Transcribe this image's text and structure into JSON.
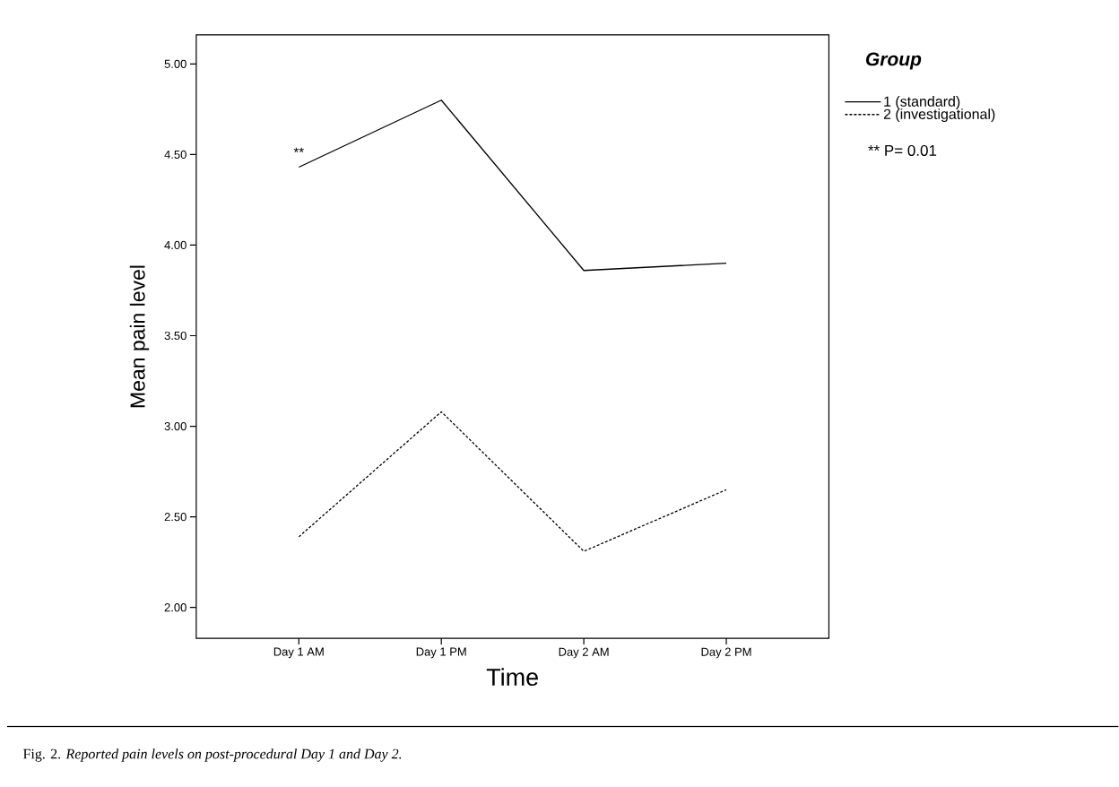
{
  "chart_data": {
    "type": "line",
    "xlabel": "Time",
    "ylabel": "Mean pain level",
    "categories": [
      "Day 1 AM",
      "Day 1 PM",
      "Day 2 AM",
      "Day 2 PM"
    ],
    "series": [
      {
        "name": "1  (standard)",
        "color": "#000000",
        "line_style": "solid",
        "values": [
          4.43,
          4.8,
          3.86,
          3.9
        ]
      },
      {
        "name": "2  (investigational)",
        "color": "#000000",
        "line_style": "dashed",
        "values": [
          2.39,
          3.08,
          2.31,
          2.65
        ]
      }
    ],
    "ylim": [
      1.83,
      5.16
    ],
    "yticks": [
      {
        "value": 2,
        "label": "2.00"
      },
      {
        "value": 2.5,
        "label": "2.50"
      },
      {
        "value": 3,
        "label": "3.00"
      },
      {
        "value": 3.5,
        "label": "3.50"
      },
      {
        "value": 4,
        "label": "4.00"
      },
      {
        "value": 4.5,
        "label": "4.50"
      },
      {
        "value": 5,
        "label": "5.00"
      }
    ],
    "legend": "top right",
    "legend_title": "Group",
    "grid": false,
    "marker": "none",
    "annotations": [
      "**",
      "** P= 0.01",
      "Fig. 2. *Reported pain levels on post-procedural Day 1 and Day 2.*"
    ]
  }
}
